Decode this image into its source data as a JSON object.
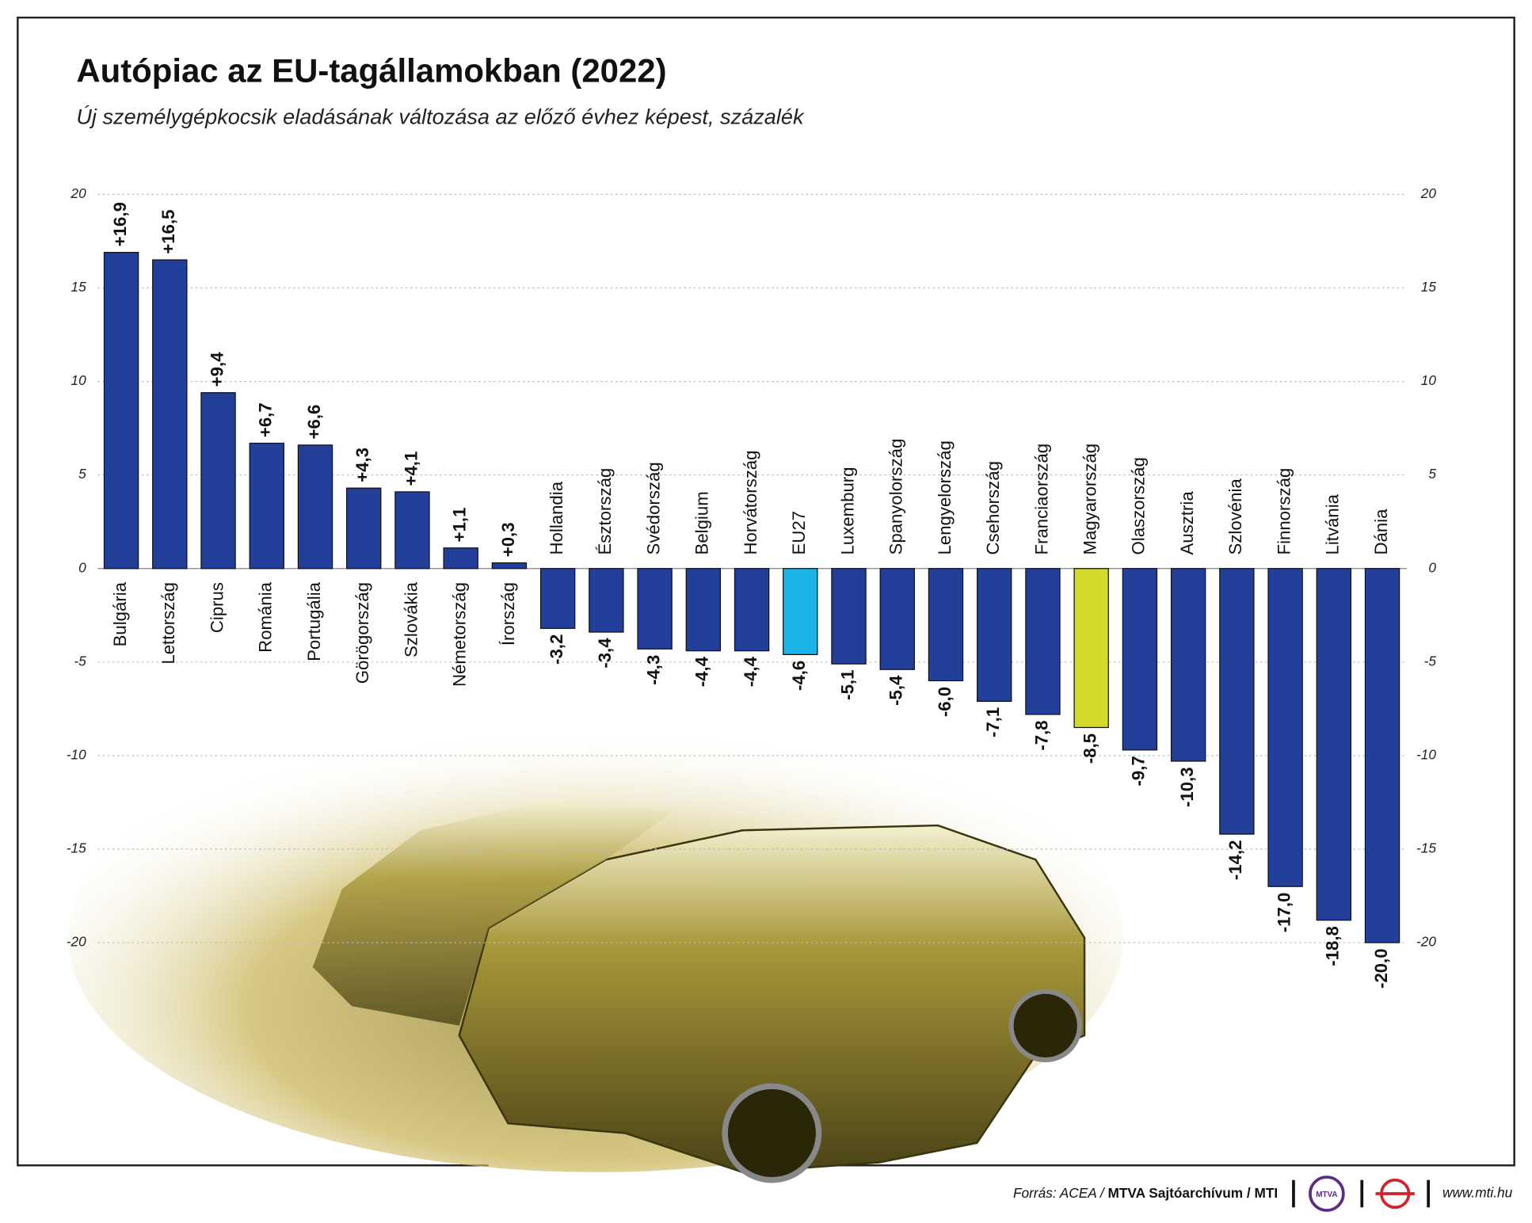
{
  "chart_data": {
    "type": "bar",
    "title": "Autópiac az EU-tagállamokban (2022)",
    "subtitle": "Új személygépkocsik eladásának változása az előző évhez képest, százalék",
    "categories": [
      "Bulgária",
      "Lettország",
      "Ciprus",
      "Románia",
      "Portugália",
      "Görögország",
      "Szlovákia",
      "Németország",
      "Írország",
      "Hollandia",
      "Észtország",
      "Svédország",
      "Belgium",
      "Horvátország",
      "EU27",
      "Luxemburg",
      "Spanyolország",
      "Lengyelország",
      "Csehország",
      "Franciaország",
      "Magyarország",
      "Olaszország",
      "Ausztria",
      "Szlovénia",
      "Finnország",
      "Litvánia",
      "Dánia"
    ],
    "values": [
      16.9,
      16.5,
      9.4,
      6.7,
      6.6,
      4.3,
      4.1,
      1.1,
      0.3,
      -3.2,
      -3.4,
      -4.3,
      -4.4,
      -4.4,
      -4.6,
      -5.1,
      -5.4,
      -6.0,
      -7.1,
      -7.8,
      -8.5,
      -9.7,
      -10.3,
      -14.2,
      -17.0,
      -18.8,
      -20.0
    ],
    "value_labels": [
      "+16,9",
      "+16,5",
      "+9,4",
      "+6,7",
      "+6,6",
      "+4,3",
      "+4,1",
      "+1,1",
      "+0,3",
      "-3,2",
      "-3,4",
      "-4,3",
      "-4,4",
      "-4,4",
      "-4,6",
      "-5,1",
      "-5,4",
      "-6,0",
      "-7,1",
      "-7,8",
      "-8,5",
      "-9,7",
      "-10,3",
      "-14,2",
      "-17,0",
      "-18,8",
      "-20,0"
    ],
    "color": "#22409a",
    "colors": {
      "EU27": "#1cb3e8",
      "Magyarország": "#d2da2a"
    },
    "ylim": [
      -20,
      20
    ],
    "yticks": [
      -20,
      -15,
      -10,
      -5,
      0,
      5,
      10,
      15,
      20
    ],
    "y2lim": [
      -20,
      20
    ],
    "y2ticks": [
      -20,
      -15,
      -10,
      -5,
      0,
      5,
      10,
      15,
      20
    ],
    "grid": true,
    "source_prefix": "Forrás: ACEA / ",
    "source_bold": "MTVA Sajtóarchívum / MTI",
    "logo": "MTVA",
    "website": "www.mti.hu"
  }
}
